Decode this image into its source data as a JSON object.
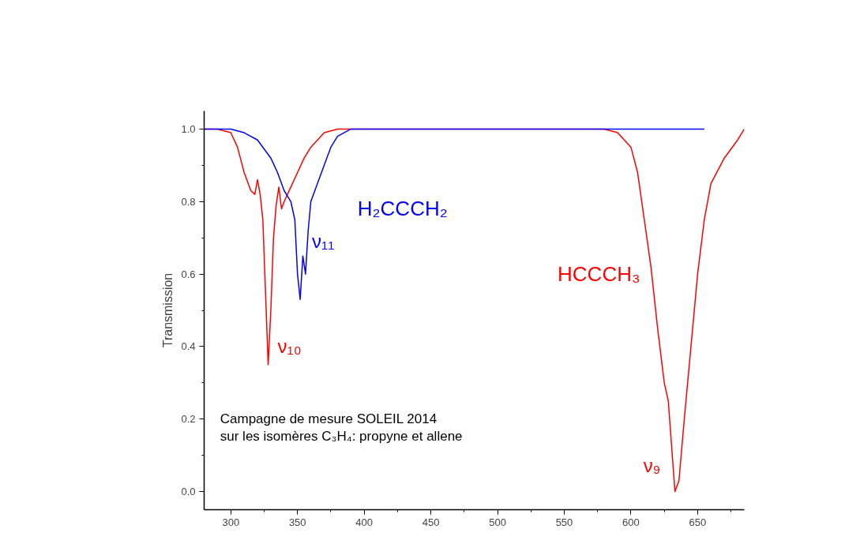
{
  "chart_data": {
    "type": "line",
    "ylabel": "Transmission",
    "xlim": [
      280,
      685
    ],
    "ylim": [
      -0.05,
      1.05
    ],
    "xticks": [
      300,
      350,
      400,
      450,
      500,
      550,
      600,
      650
    ],
    "yticks": [
      {
        "value": 0,
        "label": "0.0"
      },
      {
        "value": 0.2,
        "label": "0.2"
      },
      {
        "value": 0.4,
        "label": "0.4"
      },
      {
        "value": 0.6,
        "label": "0.6"
      },
      {
        "value": 0.8,
        "label": "0.8"
      },
      {
        "value": 1,
        "label": "1.0"
      }
    ],
    "grid": false,
    "legend": false,
    "marker": "none",
    "line_style": "solid",
    "series": [
      {
        "name": "HCCCH₃",
        "color": "#ff0000",
        "x": [
          280,
          290,
          300,
          305,
          310,
          315,
          318,
          320,
          322,
          324,
          326,
          328,
          330,
          332,
          334,
          336,
          338,
          340,
          345,
          350,
          355,
          360,
          370,
          380,
          580,
          590,
          600,
          605,
          610,
          615,
          620,
          625,
          628,
          630,
          633,
          636,
          640,
          645,
          650,
          655,
          660,
          670,
          680,
          685
        ],
        "values": [
          1.0,
          1.0,
          0.99,
          0.95,
          0.88,
          0.83,
          0.82,
          0.86,
          0.82,
          0.75,
          0.55,
          0.35,
          0.5,
          0.7,
          0.79,
          0.84,
          0.78,
          0.8,
          0.84,
          0.88,
          0.92,
          0.95,
          0.99,
          1.0,
          1.0,
          0.99,
          0.95,
          0.88,
          0.75,
          0.62,
          0.45,
          0.3,
          0.25,
          0.15,
          0.0,
          0.03,
          0.2,
          0.4,
          0.6,
          0.75,
          0.85,
          0.92,
          0.97,
          1.0
        ]
      },
      {
        "name": "H₂CCCH₂",
        "color": "#0000ff",
        "x": [
          280,
          300,
          310,
          320,
          330,
          335,
          340,
          345,
          348,
          350,
          352,
          354,
          356,
          358,
          360,
          365,
          370,
          375,
          380,
          390,
          450,
          500,
          550,
          600,
          655
        ],
        "values": [
          1.0,
          1.0,
          0.99,
          0.97,
          0.92,
          0.88,
          0.83,
          0.8,
          0.75,
          0.6,
          0.53,
          0.65,
          0.6,
          0.72,
          0.8,
          0.85,
          0.9,
          0.95,
          0.98,
          1.0,
          1.0,
          1.0,
          1.0,
          1.0,
          1.0
        ]
      }
    ],
    "annotations": [
      {
        "text": "ν₁₀",
        "x": 328,
        "y": 0.35
      },
      {
        "text": "ν₁₁",
        "x": 352,
        "y": 0.53
      },
      {
        "text": "ν₉",
        "x": 633,
        "y": 0.0
      },
      "Campagne de mesure SOLEIL 2014",
      " sur les isomères C₃H₄: propyne et  allene"
    ]
  }
}
